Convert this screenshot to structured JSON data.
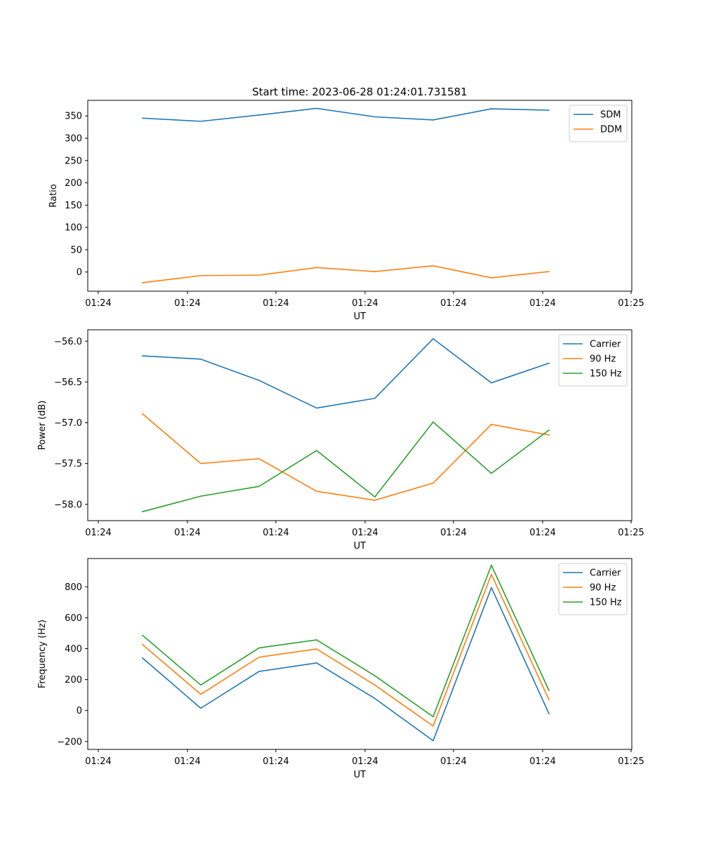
{
  "chart_data": [
    {
      "type": "line",
      "title": "Start time: 2023-06-28 01:24:01.731581",
      "xlabel": "UT",
      "ylabel": "Ratio",
      "x_tick_labels": [
        "01:24",
        "01:24",
        "01:24",
        "01:24",
        "01:24",
        "01:24",
        "01:25"
      ],
      "ylim": [
        -43,
        385
      ],
      "yticks": [
        0,
        50,
        100,
        150,
        200,
        250,
        300,
        350
      ],
      "ytick_labels": [
        "0",
        "50",
        "100",
        "150",
        "200",
        "250",
        "300",
        "350"
      ],
      "legend": "top-right",
      "series": [
        {
          "name": "SDM",
          "color": "#1f77b4",
          "values": [
            345,
            338,
            352,
            367,
            348,
            341,
            366,
            363
          ]
        },
        {
          "name": "DDM",
          "color": "#ff7f0e",
          "values": [
            -24,
            -8,
            -7,
            10,
            1,
            14,
            -13,
            1
          ]
        }
      ]
    },
    {
      "type": "line",
      "title": "",
      "xlabel": "UT",
      "ylabel": "Power (dB)",
      "x_tick_labels": [
        "01:24",
        "01:24",
        "01:24",
        "01:24",
        "01:24",
        "01:24",
        "01:25"
      ],
      "ylim": [
        -58.2,
        -55.86
      ],
      "yticks": [
        -58.0,
        -57.5,
        -57.0,
        -56.5,
        -56.0
      ],
      "ytick_labels": [
        "−58.0",
        "−57.5",
        "−57.0",
        "−56.5",
        "−56.0"
      ],
      "legend": "top-right",
      "series": [
        {
          "name": "Carrier",
          "color": "#1f77b4",
          "values": [
            -56.18,
            -56.22,
            -56.48,
            -56.82,
            -56.7,
            -55.97,
            -56.51,
            -56.27
          ]
        },
        {
          "name": "90 Hz",
          "color": "#ff7f0e",
          "values": [
            -56.89,
            -57.5,
            -57.44,
            -57.84,
            -57.95,
            -57.74,
            -57.02,
            -57.15
          ]
        },
        {
          "name": "150 Hz",
          "color": "#2ca02c",
          "values": [
            -58.09,
            -57.9,
            -57.78,
            -57.34,
            -57.91,
            -56.99,
            -57.62,
            -57.09
          ]
        }
      ]
    },
    {
      "type": "line",
      "title": "",
      "xlabel": "UT",
      "ylabel": "Frequency (Hz)",
      "x_tick_labels": [
        "01:24",
        "01:24",
        "01:24",
        "01:24",
        "01:24",
        "01:24",
        "01:25"
      ],
      "ylim": [
        -251,
        983
      ],
      "yticks": [
        -200,
        0,
        200,
        400,
        600,
        800
      ],
      "ytick_labels": [
        "−200",
        "0",
        "200",
        "400",
        "600",
        "800"
      ],
      "legend": "top-right",
      "series": [
        {
          "name": "Carrier",
          "color": "#1f77b4",
          "values": [
            340,
            15,
            253,
            308,
            78,
            -195,
            795,
            -20
          ]
        },
        {
          "name": "90 Hz",
          "color": "#ff7f0e",
          "values": [
            427,
            105,
            345,
            398,
            165,
            -100,
            880,
            70
          ]
        },
        {
          "name": "150 Hz",
          "color": "#2ca02c",
          "values": [
            487,
            165,
            405,
            457,
            225,
            -40,
            940,
            130
          ]
        }
      ]
    }
  ]
}
